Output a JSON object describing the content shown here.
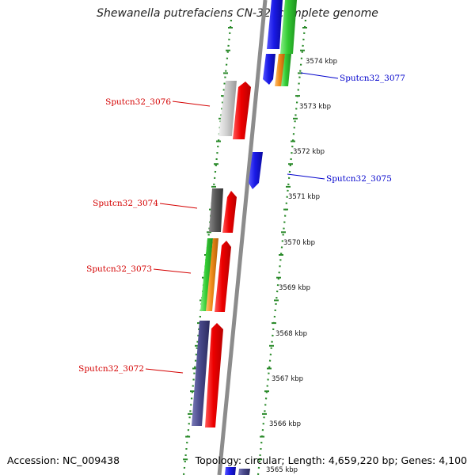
{
  "header": {
    "title": "Shewanella putrefaciens CN-32, complete genome"
  },
  "footer": {
    "accession": "Accession: NC_009438",
    "summary": "Topology: circular; Length: 4,659,220 bp; Genes: 4,100"
  },
  "colors": {
    "backbone": "#8c8c8c",
    "tick": "#2a8a2a",
    "left_label": "#d40000",
    "right_label": "#0000cc",
    "red": "#ee0000",
    "blue": "#1a1ae6",
    "green": "#33cc33",
    "orange": "#f08c1a",
    "light_gray": "#cfcfcf",
    "dark_gray": "#5a5a5a",
    "slate": "#4a4a8c"
  },
  "scale": {
    "labels": [
      "3574 kbp",
      "3573 kbp",
      "3572 kbp",
      "3571 kbp",
      "3570 kbp",
      "3569 kbp",
      "3568 kbp",
      "3567 kbp",
      "3566 kbp",
      "3565 kbp"
    ]
  },
  "gene_labels": {
    "left": [
      "Sputcn32_3076",
      "Sputcn32_3074",
      "Sputcn32_3073",
      "Sputcn32_3072"
    ],
    "right": [
      "Sputcn32_3077",
      "Sputcn32_3075"
    ]
  }
}
